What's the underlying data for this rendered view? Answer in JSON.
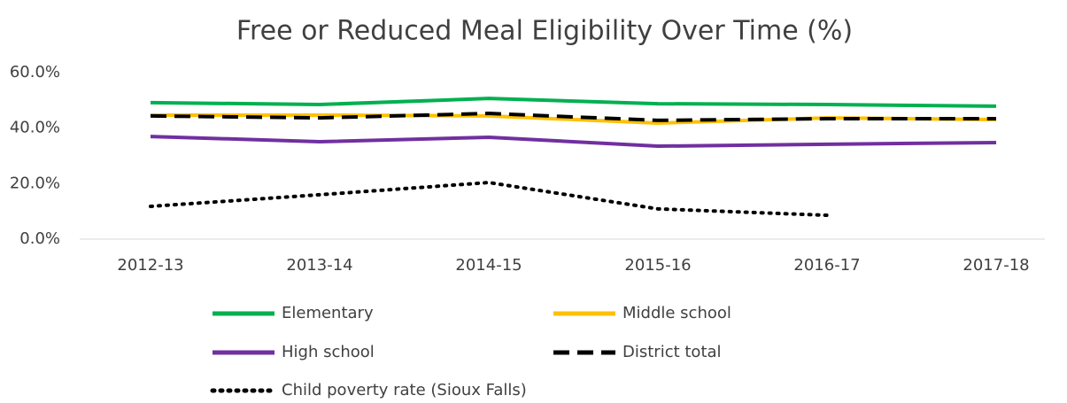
{
  "chart_data": {
    "type": "line",
    "title": "Free or Reduced Meal Eligibility Over Time (%)",
    "categories": [
      "2012-13",
      "2013-14",
      "2014-15",
      "2015-16",
      "2016-17",
      "2017-18"
    ],
    "series": [
      {
        "name": "Elementary",
        "color": "#00b050",
        "line_style": "solid",
        "values": [
          49.2,
          48.5,
          50.7,
          48.8,
          48.5,
          47.9
        ]
      },
      {
        "name": "Middle school",
        "color": "#ffc000",
        "line_style": "solid",
        "values": [
          44.7,
          44.7,
          44.4,
          41.8,
          43.7,
          43.1
        ]
      },
      {
        "name": "High school",
        "color": "#7030a0",
        "line_style": "solid",
        "values": [
          37.0,
          35.1,
          36.7,
          33.5,
          34.2,
          34.8
        ]
      },
      {
        "name": "District total",
        "color": "#000000",
        "line_style": "dashed",
        "values": [
          44.4,
          43.7,
          45.3,
          42.8,
          43.4,
          43.4
        ]
      },
      {
        "name": "Child poverty rate (Sioux Falls)",
        "color": "#000000",
        "line_style": "dotted",
        "values": [
          11.8,
          16.0,
          20.4,
          10.9,
          8.6,
          null
        ]
      }
    ],
    "ylim": [
      0,
      60
    ],
    "yticks": [
      {
        "value": 0,
        "label": "0.0%"
      },
      {
        "value": 20,
        "label": "20.0%"
      },
      {
        "value": 40,
        "label": "40.0%"
      },
      {
        "value": 60,
        "label": "60.0%"
      }
    ],
    "grid": false
  }
}
